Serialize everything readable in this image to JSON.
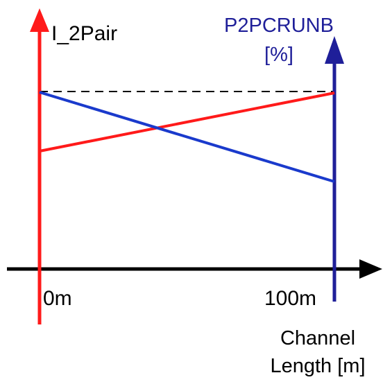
{
  "labels": {
    "left_axis": "I_2Pair",
    "right_axis_line1": "P2PCRUNB",
    "right_axis_line2": "[%]",
    "x_start": "0m",
    "x_end": "100m",
    "x_axis_line1": "Channel",
    "x_axis_line2": "Length [m]"
  },
  "colors": {
    "left_axis": "#ff1a1a",
    "right_axis": "#1f1f99",
    "red_series": "#ff1a1a",
    "blue_series": "#1a3acc",
    "x_axis": "#000000",
    "guide_lines": "#000000",
    "right_axis_label": "#1f1f99"
  }
}
